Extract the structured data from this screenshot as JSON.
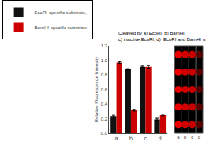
{
  "chart_data": {
    "type": "bar",
    "subtitle": "Cleaved by a) EcoRI, b) BamHI, c) inactive EcoRI, d)  EcoRI and BamHI mixture",
    "categories": [
      "a",
      "b",
      "c",
      "d"
    ],
    "series": [
      {
        "name": "EcoRI-specific substrate,",
        "color": "#111111",
        "values": [
          0.235,
          0.875,
          0.91,
          0.19
        ],
        "errors": [
          0.012,
          0.01,
          0.01,
          0.015
        ]
      },
      {
        "name": "BamHI-specific substrate",
        "color": "#cc0000",
        "values": [
          0.968,
          0.315,
          0.91,
          0.25
        ],
        "errors": [
          0.012,
          0.012,
          0.018,
          0.01
        ]
      }
    ],
    "ylabel": "Relative Fluorescence Intensity",
    "ylim": [
      0.0,
      1.2
    ],
    "yticks": [
      {
        "value": 0,
        "label": "0.0"
      },
      0.2,
      0.4,
      0.6,
      0.8,
      {
        "value": 1,
        "label": "1.0"
      },
      1.2
    ],
    "grid": false,
    "legend": "upper left",
    "inset": {
      "categories": [
        "a",
        "b",
        "c",
        "d"
      ],
      "rows": 5,
      "brightness": [
        0.92,
        0.82,
        0.78,
        0.35
      ]
    }
  }
}
